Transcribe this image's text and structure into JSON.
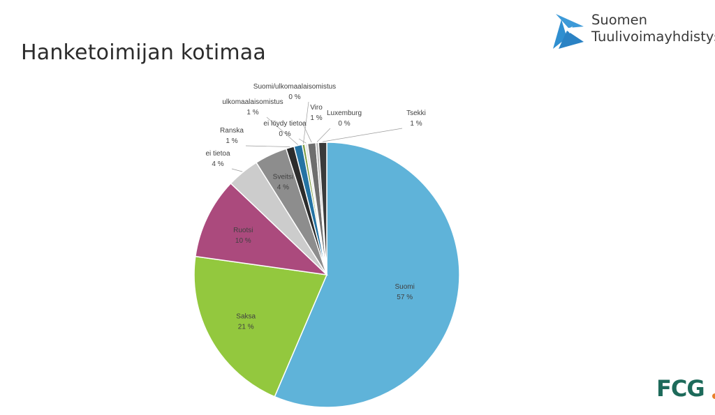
{
  "slide": {
    "title": "Hanketoimijan kotimaa"
  },
  "brand": {
    "line1": "Suomen",
    "line2": "Tuulivoimayhdistys",
    "logo_icon": "wind-turbine-logo",
    "logo_color": "#2f8fd0"
  },
  "footer": {
    "logo_text": "FCG",
    "logo_color": "#1d6a5a",
    "dot_color": "#e8812b"
  },
  "chart_data": {
    "type": "pie",
    "title": "",
    "start": "12 o'clock, clockwise",
    "slices": [
      {
        "label": "Suomi",
        "value": 57,
        "display": "57 %",
        "color": "#5fb3d9"
      },
      {
        "label": "Saksa",
        "value": 21,
        "display": "21 %",
        "color": "#93c83e"
      },
      {
        "label": "Ruotsi",
        "value": 10,
        "display": "10 %",
        "color": "#ab4a7d"
      },
      {
        "label": "ei tietoa",
        "value": 4,
        "display": "4 %",
        "color": "#cccccc"
      },
      {
        "label": "Sveitsi",
        "value": 4,
        "display": "4 %",
        "color": "#8d8d8d"
      },
      {
        "label": "Ranska",
        "value": 1,
        "display": "1 %",
        "color": "#2c2c2c"
      },
      {
        "label": "ulkomaalaisomistus",
        "value": 1,
        "display": "1 %",
        "color": "#2473a3"
      },
      {
        "label": "Suomi/ulkomaalaisomistus",
        "value": 0,
        "display": "0 %",
        "color": "#7e9e46"
      },
      {
        "label": "ei löydy tietoa",
        "value": 0,
        "display": "0 %",
        "color": "#e8e8e8"
      },
      {
        "label": "Viro",
        "value": 1,
        "display": "1 %",
        "color": "#6e6e6e"
      },
      {
        "label": "Luxemburg",
        "value": 0,
        "display": "0 %",
        "color": "#b5b5b5"
      },
      {
        "label": "Tsekki",
        "value": 1,
        "display": "1 %",
        "color": "#3a3a3a"
      }
    ]
  }
}
